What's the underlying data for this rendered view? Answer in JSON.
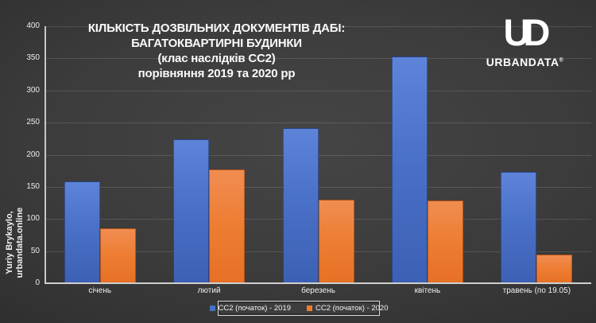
{
  "credit": {
    "line1": "Yuriy Brykaylo,",
    "line2": "urbandata.online"
  },
  "brand": {
    "monogram_u": "U",
    "monogram_d": "D",
    "name": "URBANDATA",
    "reg": "®"
  },
  "chart_data": {
    "type": "bar",
    "title": "КІЛЬКІСТЬ ДОЗВІЛЬНИХ ДОКУМЕНТІВ ДАБІ: БАГАТОКВАРТИРНІ БУДИНКИ (клас наслідків СС2) порівняння 2019 та 2020 рр",
    "title_lines": [
      "КІЛЬКІСТЬ ДОЗВІЛЬНИХ ДОКУМЕНТІВ ДАБІ:",
      "БАГАТОКВАРТИРНІ БУДИНКИ",
      "(клас наслідків СС2)",
      "порівняння 2019 та 2020 рр"
    ],
    "categories": [
      "січень",
      "лютий",
      "березень",
      "квітень",
      "травень (по 19.05)"
    ],
    "series": [
      {
        "name": "СС2 (початок) - 2019",
        "color": "#4472C4",
        "values": [
          158,
          224,
          242,
          353,
          174
        ]
      },
      {
        "name": "СС2 (початок) - 2020",
        "color": "#ED7D31",
        "values": [
          86,
          177,
          130,
          129,
          44
        ]
      }
    ],
    "xlabel": "",
    "ylabel": "",
    "ylim": [
      0,
      400
    ],
    "ytick_step": 50,
    "grid": true,
    "legend_position": "bottom"
  }
}
